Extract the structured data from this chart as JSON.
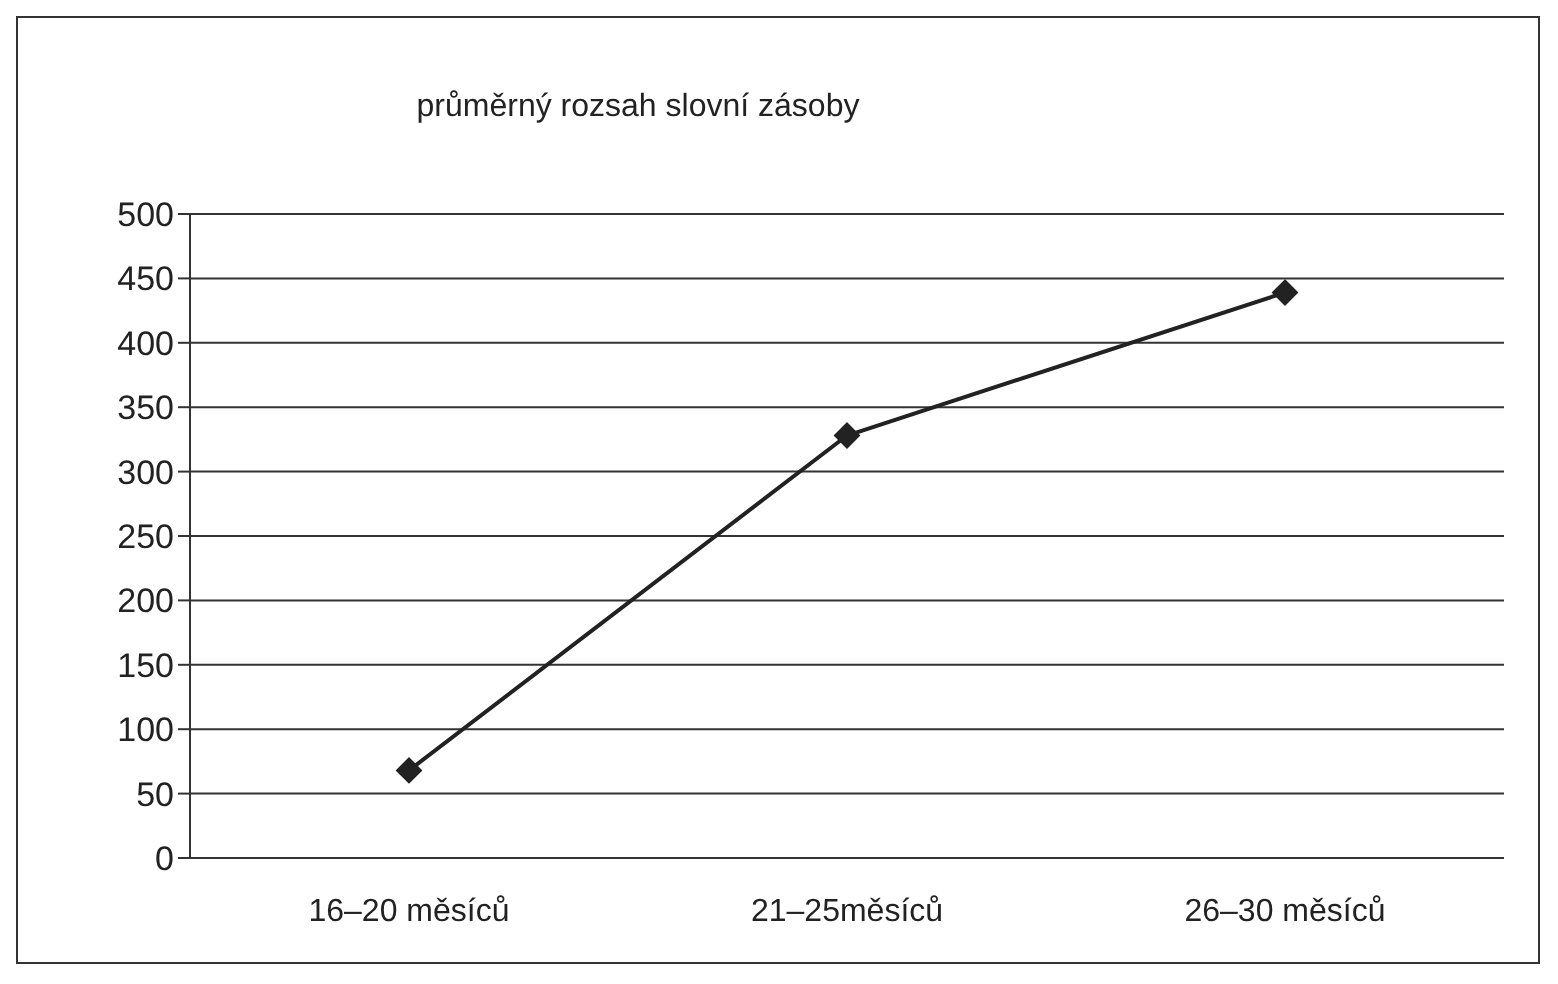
{
  "chart_data": {
    "type": "line",
    "title": "průměrný rozsah slovní zásoby",
    "categories": [
      "16–20 měsíců",
      "21–25měsíců",
      "26–30 měsíců"
    ],
    "series": [
      {
        "color": "#222222",
        "values": [
          68,
          328,
          439
        ]
      }
    ],
    "ylim": [
      0,
      500
    ],
    "yticks": [
      0,
      50,
      100,
      150,
      200,
      250,
      300,
      350,
      400,
      450,
      500
    ],
    "grid": "y",
    "legend": false,
    "marker": "diamond",
    "line_style": "solid"
  }
}
